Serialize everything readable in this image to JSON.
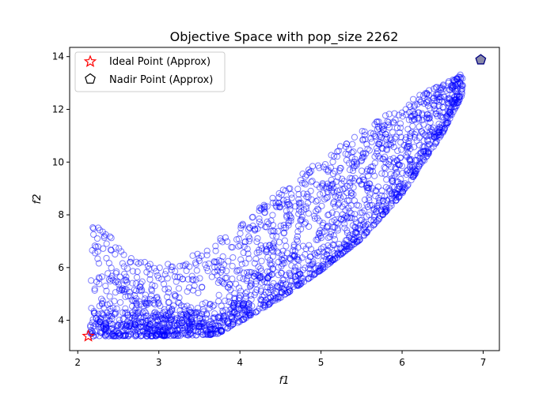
{
  "chart_data": {
    "type": "scatter",
    "title": "Objective Space with pop_size 2262",
    "xlabel": "f1",
    "ylabel": "f2",
    "xlim": [
      1.9,
      7.2
    ],
    "ylim": [
      2.85,
      14.35
    ],
    "xticks": [
      2,
      3,
      4,
      5,
      6,
      7
    ],
    "yticks": [
      4,
      6,
      8,
      10,
      12,
      14
    ],
    "grid": false,
    "legend_position": "upper-left",
    "population_size": 2262,
    "series": [
      {
        "style": "open-circle",
        "color": "#0000ff",
        "alpha": 0.5,
        "points": [],
        "region": {
          "lower_front": [
            [
              2.2,
              3.4
            ],
            [
              3.0,
              3.4
            ],
            [
              3.7,
              3.45
            ],
            [
              4.0,
              3.95
            ],
            [
              4.5,
              4.85
            ],
            [
              5.0,
              5.9
            ],
            [
              5.5,
              7.1
            ],
            [
              6.0,
              8.8
            ],
            [
              6.5,
              11.1
            ],
            [
              6.75,
              12.6
            ]
          ],
          "upper_front": [
            [
              2.15,
              8.15
            ],
            [
              2.35,
              7.4
            ],
            [
              2.55,
              6.6
            ],
            [
              3.0,
              6.0
            ],
            [
              3.5,
              6.6
            ],
            [
              4.0,
              7.6
            ],
            [
              4.5,
              9.0
            ],
            [
              5.0,
              10.1
            ],
            [
              5.5,
              11.2
            ],
            [
              6.0,
              12.2
            ],
            [
              6.5,
              13.0
            ],
            [
              6.75,
              13.4
            ]
          ]
        }
      },
      {
        "name": "Ideal Point (Approx)",
        "style": "star",
        "color": "#ff0000",
        "points": [
          [
            2.13,
            3.4
          ]
        ]
      },
      {
        "name": "Nadir Point (Approx)",
        "style": "pentagon",
        "color": "#000080",
        "fill": "#8a8aa8",
        "points": [
          [
            6.97,
            13.88
          ]
        ]
      }
    ]
  }
}
